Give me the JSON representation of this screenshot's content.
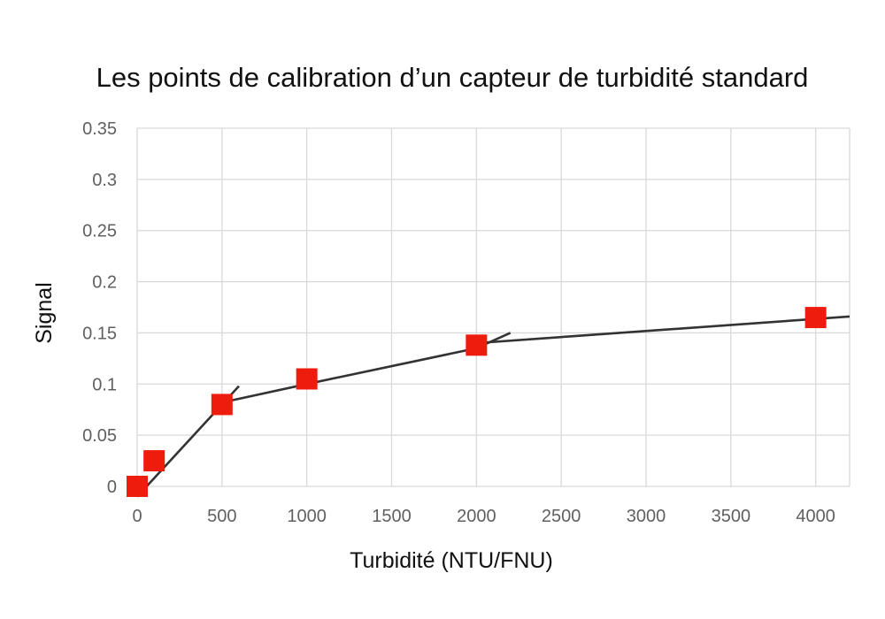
{
  "chart_data": {
    "type": "scatter",
    "title": "Les points de calibration d’un capteur de turbidité standard",
    "xlabel": "Turbidité (NTU/FNU)",
    "ylabel": "Signal",
    "xlim": [
      0,
      4200
    ],
    "ylim": [
      0,
      0.35
    ],
    "x_ticks": [
      0,
      500,
      1000,
      1500,
      2000,
      2500,
      3000,
      3500,
      4000
    ],
    "y_ticks": [
      0,
      0.05,
      0.1,
      0.15,
      0.2,
      0.25,
      0.3,
      0.35
    ],
    "x_tick_labels": [
      "0",
      "500",
      "1000",
      "1500",
      "2000",
      "2500",
      "3000",
      "3500",
      "4000"
    ],
    "y_tick_labels": [
      "0",
      "0.05",
      "0.1",
      "0.15",
      "0.2",
      "0.25",
      "0.3",
      "0.35"
    ],
    "grid": true,
    "legend": "none",
    "series": [
      {
        "marker": "square",
        "color": "#ee1c0c",
        "x": [
          0,
          100,
          500,
          1000,
          2000,
          4000
        ],
        "y": [
          0,
          0.025,
          0.08,
          0.105,
          0.138,
          0.165
        ]
      }
    ],
    "fit_lines": [
      {
        "color": "#333333",
        "x": [
          0,
          600
        ],
        "y": [
          -0.01,
          0.098
        ]
      },
      {
        "color": "#333333",
        "x": [
          500,
          1000,
          2000,
          2200
        ],
        "y": [
          0.082,
          0.1,
          0.135,
          0.15
        ]
      },
      {
        "color": "#333333",
        "x": [
          2000,
          4200
        ],
        "y": [
          0.14,
          0.166
        ]
      }
    ]
  }
}
